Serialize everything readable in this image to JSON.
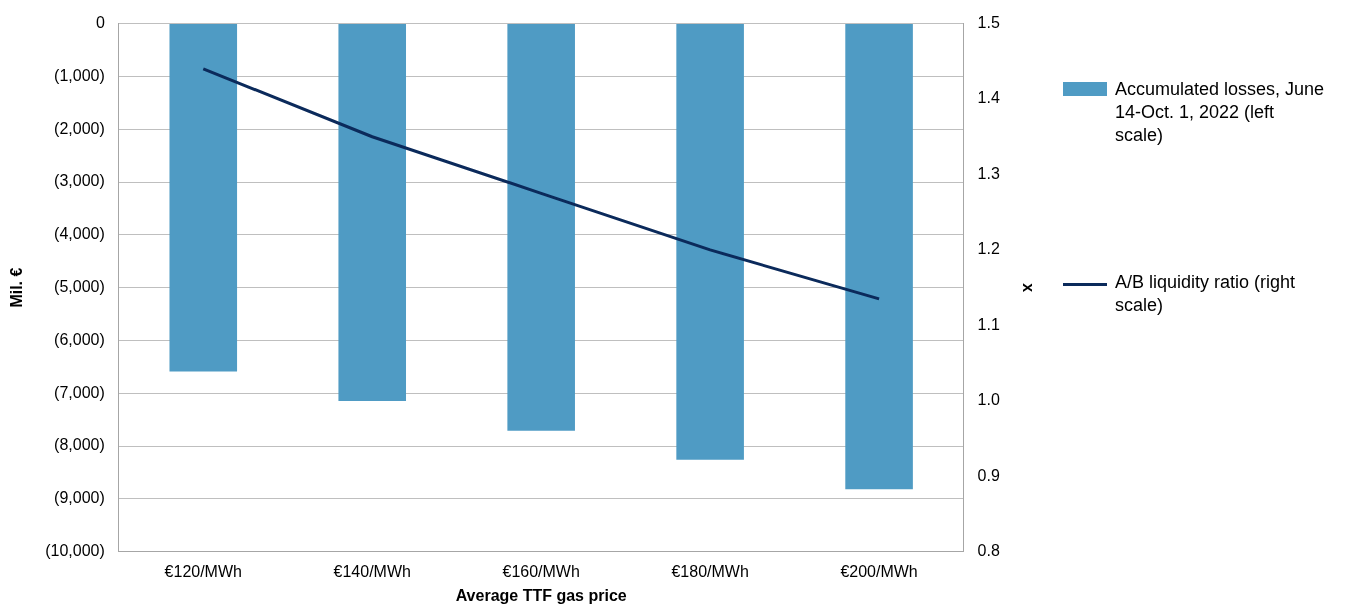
{
  "chart_data": {
    "type": "bar",
    "xlabel": "Average TTF gas price",
    "ylabel": "Mil. €",
    "y2label": "x",
    "categories": [
      "€120/MWh",
      "€140/MWh",
      "€160/MWh",
      "€180/MWh",
      "€200/MWh"
    ],
    "series": [
      {
        "name": "Accumulated losses, June 14-Oct. 1, 2022 (left scale)",
        "color": "#4f9bc4",
        "values": [
          -6590,
          -7150,
          -7710,
          -8260,
          -8820
        ]
      },
      {
        "name": "A/B liquidity ratio (right scale)",
        "type": "line",
        "axis": "y2",
        "color": "#0b2a5b",
        "values": [
          1.44,
          1.35,
          1.275,
          1.2,
          1.135
        ]
      }
    ],
    "ylim": [
      -10000,
      0
    ],
    "yticks": [
      {
        "value": -10000,
        "label": "(10,000)"
      },
      {
        "value": -9000,
        "label": "(9,000)"
      },
      {
        "value": -8000,
        "label": "(8,000)"
      },
      {
        "value": -7000,
        "label": "(7,000)"
      },
      {
        "value": -6000,
        "label": "(6,000)"
      },
      {
        "value": -5000,
        "label": "(5,000)"
      },
      {
        "value": -4000,
        "label": "(4,000)"
      },
      {
        "value": -3000,
        "label": "(3,000)"
      },
      {
        "value": -2000,
        "label": "(2,000)"
      },
      {
        "value": -1000,
        "label": "(1,000)"
      },
      0
    ],
    "y2lim": [
      0.8,
      1.5
    ],
    "y2ticks": [
      0.8,
      0.9,
      {
        "value": 1,
        "label": "1.0"
      },
      1.1,
      1.2,
      1.3,
      1.4,
      1.5
    ],
    "grid": "y",
    "legend": "right",
    "marker": "none",
    "line_style": "solid"
  }
}
